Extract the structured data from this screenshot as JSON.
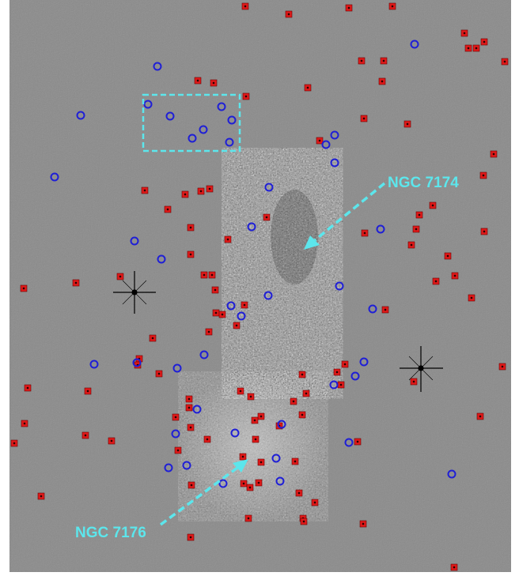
{
  "image": {
    "background_color": "#8a8a8a",
    "frame_color": "#ffffff"
  },
  "annotations": {
    "label_color": "#5ce6ec",
    "galaxy_a": {
      "name": "NGC 7174"
    },
    "galaxy_b": {
      "name": "NGC 7176"
    }
  },
  "markers": {
    "blue_circle_color": "#1f1fd6",
    "red_square_color": "#e01a1a"
  }
}
